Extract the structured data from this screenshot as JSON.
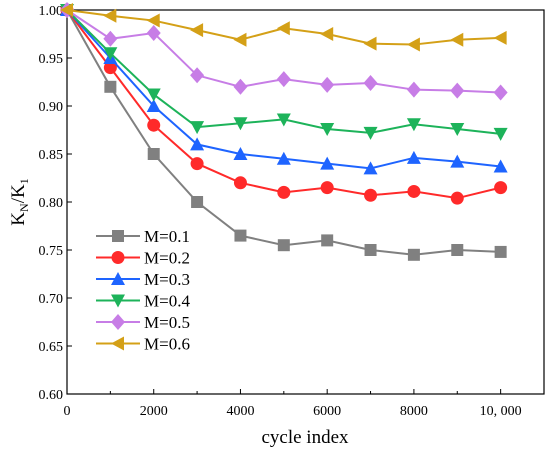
{
  "chart_data": {
    "type": "line",
    "xlabel": "cycle index",
    "ylabel": {
      "base": "K",
      "sub_n": "N",
      "sep": "/K",
      "sub_1": "1"
    },
    "xlim": [
      0,
      11000
    ],
    "ylim": [
      0.6,
      1.0
    ],
    "x_ticks": [
      {
        "value": 0,
        "label": "0"
      },
      {
        "value": 2000,
        "label": "2000"
      },
      {
        "value": 4000,
        "label": "4000"
      },
      {
        "value": 6000,
        "label": "6000"
      },
      {
        "value": 8000,
        "label": "8000"
      },
      {
        "value": 10000,
        "label": "10, 000"
      }
    ],
    "y_ticks": [
      {
        "value": 0.6,
        "label": "0.60"
      },
      {
        "value": 0.65,
        "label": "0.65"
      },
      {
        "value": 0.7,
        "label": "0.70"
      },
      {
        "value": 0.75,
        "label": "0.75"
      },
      {
        "value": 0.8,
        "label": "0.80"
      },
      {
        "value": 0.85,
        "label": "0.85"
      },
      {
        "value": 0.9,
        "label": "0.90"
      },
      {
        "value": 0.95,
        "label": "0.95"
      },
      {
        "value": 1.0,
        "label": "1.00"
      }
    ],
    "grid": false,
    "legend_position": "bottom-left",
    "x": [
      0,
      1000,
      2000,
      3000,
      4000,
      5000,
      6000,
      7000,
      8000,
      9000,
      10000
    ],
    "series": [
      {
        "name": "M=0.1",
        "color": "#808080",
        "marker": "square",
        "values": [
          1.0,
          0.92,
          0.85,
          0.8,
          0.765,
          0.755,
          0.76,
          0.75,
          0.745,
          0.75,
          0.748
        ]
      },
      {
        "name": "M=0.2",
        "color": "#ff2a2a",
        "marker": "circle",
        "values": [
          1.0,
          0.94,
          0.88,
          0.84,
          0.82,
          0.81,
          0.815,
          0.807,
          0.811,
          0.804,
          0.815
        ]
      },
      {
        "name": "M=0.3",
        "color": "#1e64ff",
        "marker": "triangle-up",
        "values": [
          1.0,
          0.95,
          0.9,
          0.86,
          0.85,
          0.845,
          0.84,
          0.835,
          0.846,
          0.842,
          0.837
        ]
      },
      {
        "name": "M=0.4",
        "color": "#1db35a",
        "marker": "triangle-down",
        "values": [
          1.0,
          0.955,
          0.912,
          0.878,
          0.882,
          0.886,
          0.876,
          0.872,
          0.881,
          0.876,
          0.871
        ]
      },
      {
        "name": "M=0.5",
        "color": "#c77de6",
        "marker": "diamond",
        "values": [
          1.0,
          0.97,
          0.976,
          0.932,
          0.92,
          0.928,
          0.922,
          0.924,
          0.917,
          0.916,
          0.914
        ]
      },
      {
        "name": "M=0.6",
        "color": "#d4a017",
        "marker": "triangle-left",
        "values": [
          1.0,
          0.994,
          0.989,
          0.979,
          0.969,
          0.981,
          0.975,
          0.965,
          0.964,
          0.969,
          0.971
        ]
      }
    ]
  }
}
